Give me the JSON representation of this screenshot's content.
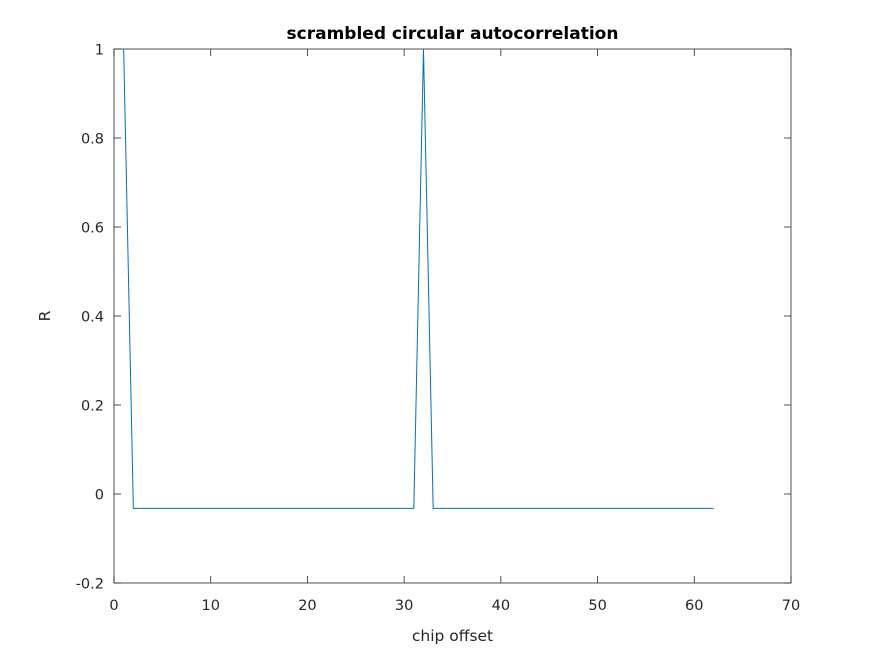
{
  "chart_data": {
    "type": "line",
    "title": "scrambled circular autocorrelation",
    "xlabel": "chip offset",
    "ylabel": "R",
    "xlim": [
      0,
      70
    ],
    "ylim": [
      -0.2,
      1
    ],
    "xticks": [
      0,
      10,
      20,
      30,
      40,
      50,
      60,
      70
    ],
    "yticks": [
      -0.2,
      0,
      0.2,
      0.4,
      0.6,
      0.8,
      1
    ],
    "xtick_labels": [
      "0",
      "10",
      "20",
      "30",
      "40",
      "50",
      "60",
      "70"
    ],
    "ytick_labels": [
      "-0.2",
      "0",
      "0.2",
      "0.4",
      "0.6",
      "0.8",
      "1"
    ],
    "grid": false,
    "series": [
      {
        "color": "#0072BD",
        "x": [
          1,
          2,
          31,
          32,
          33,
          62
        ],
        "y": [
          1,
          -0.0323,
          -0.0323,
          1,
          -0.0323,
          -0.0323
        ]
      }
    ]
  }
}
